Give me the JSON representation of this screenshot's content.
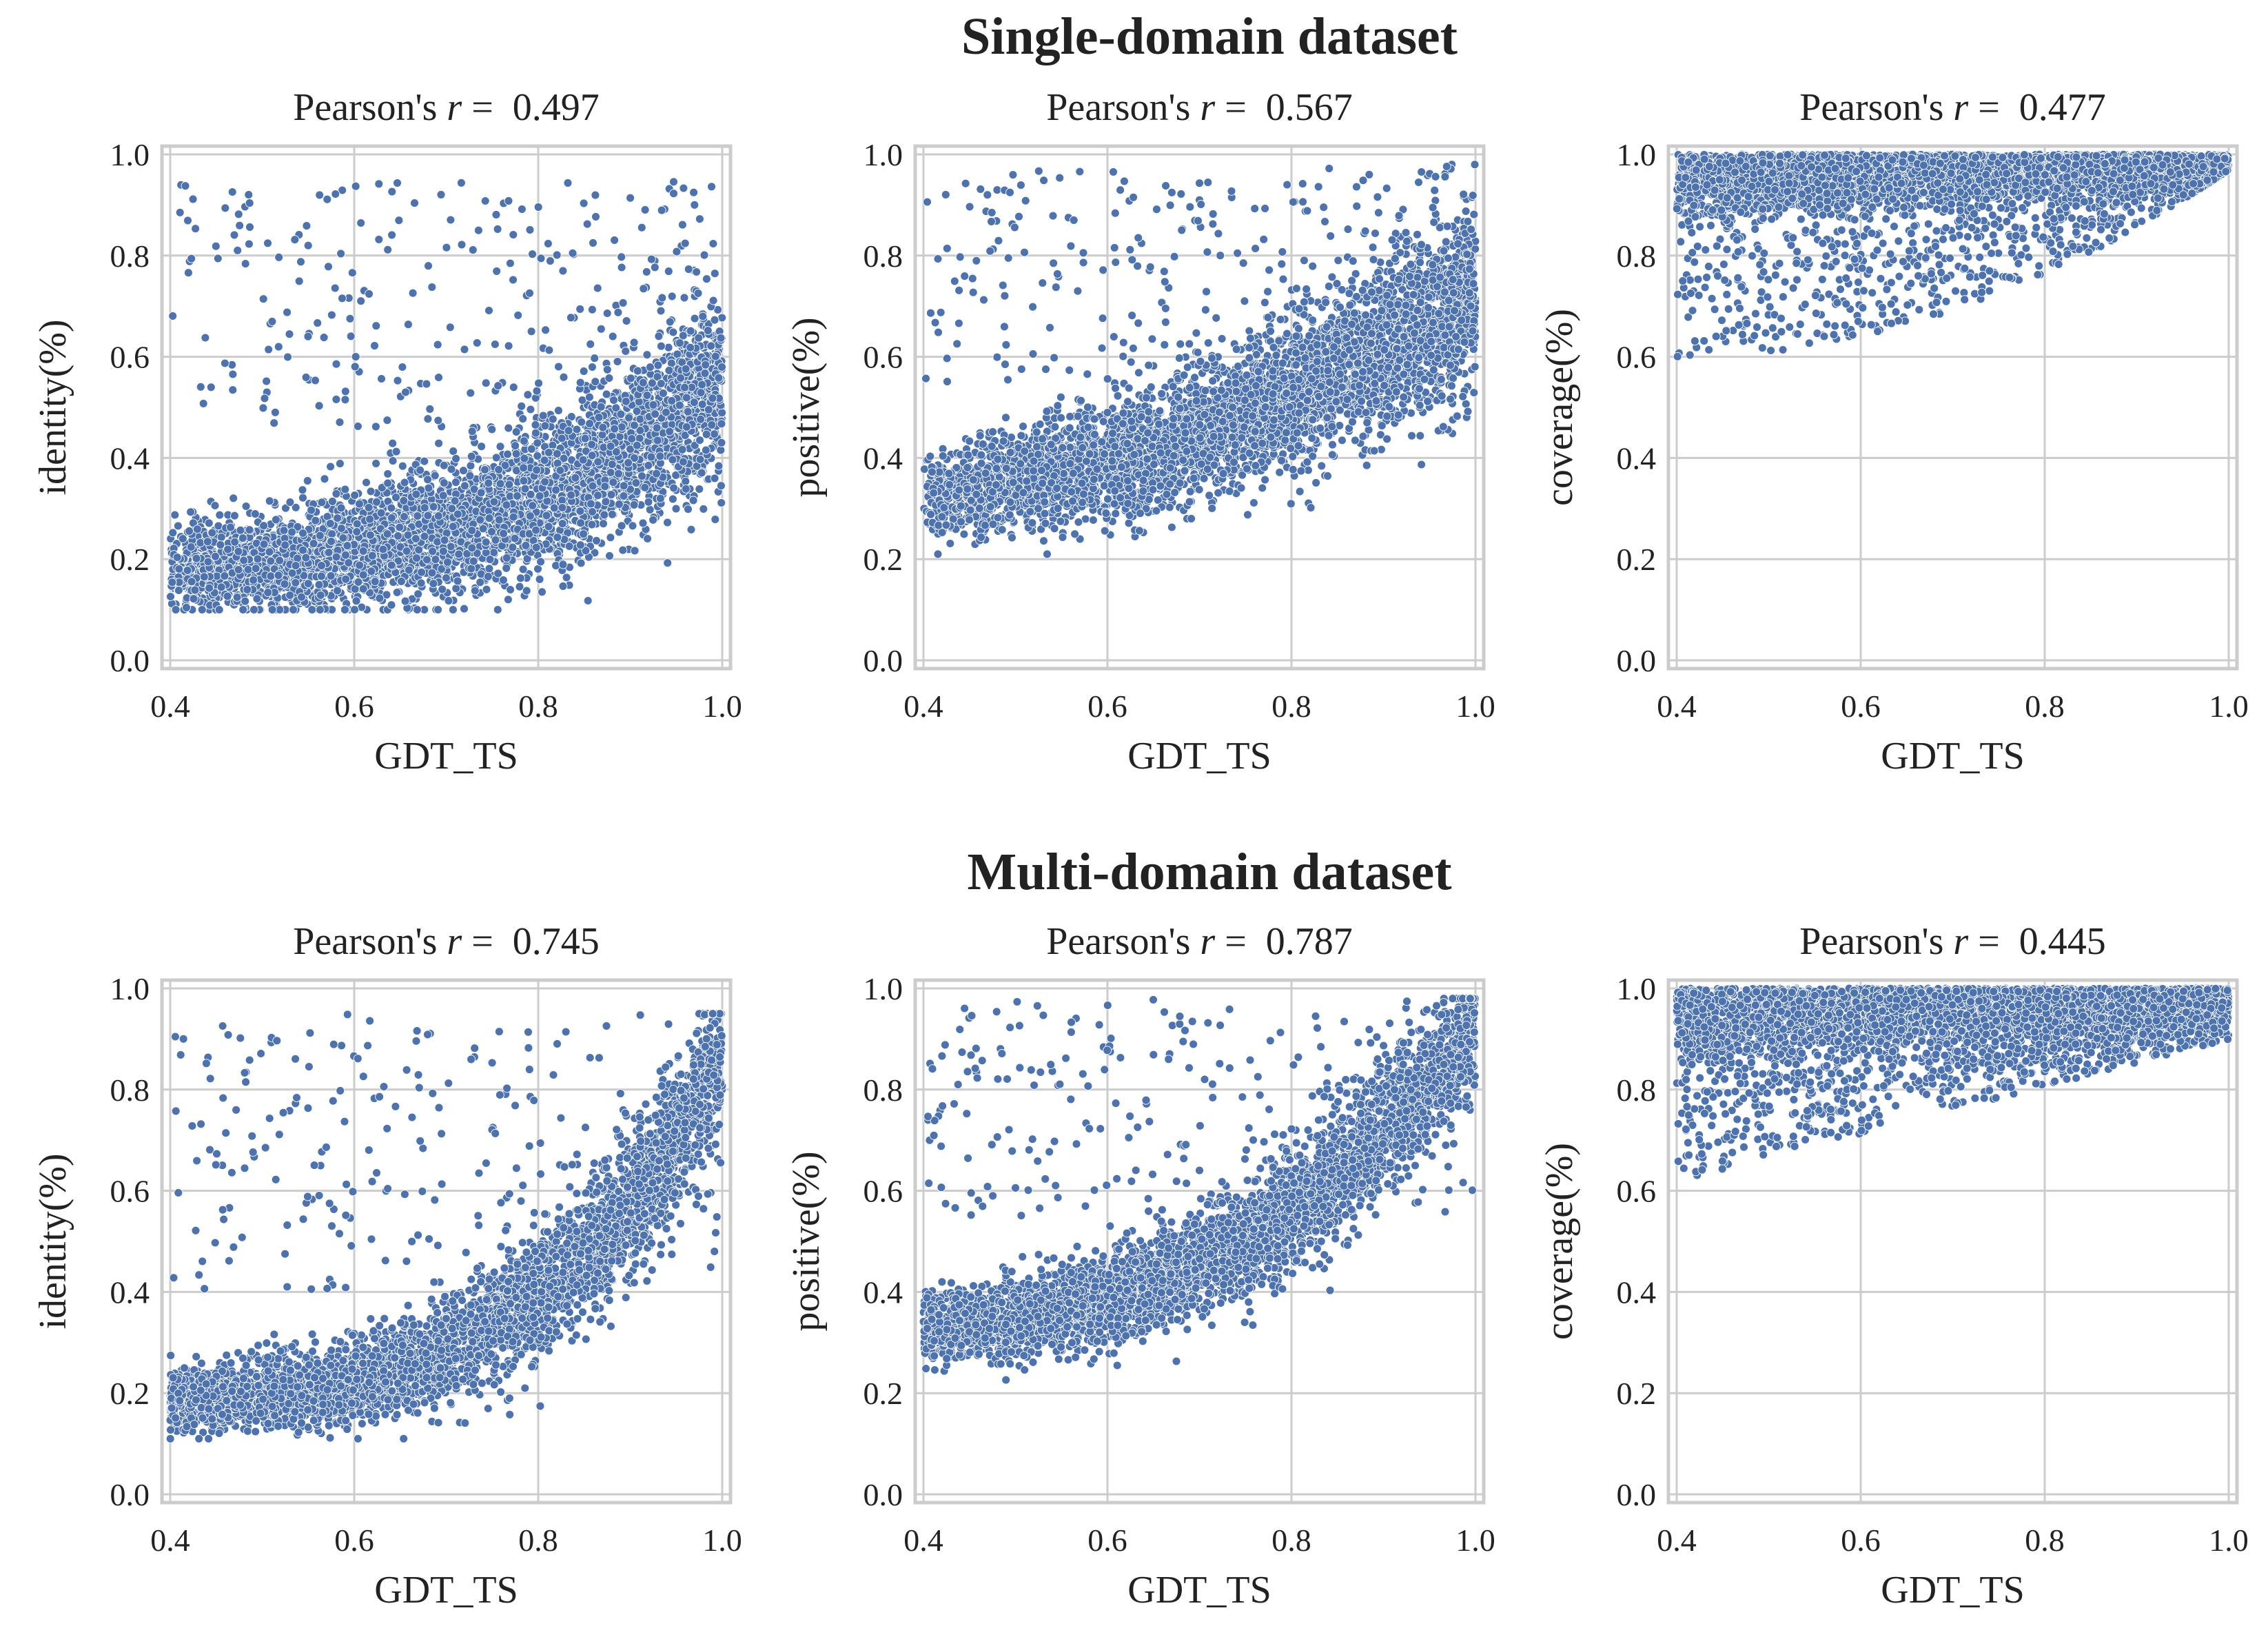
{
  "figure": {
    "row_titles": [
      "Single-domain dataset",
      "Multi-domain dataset"
    ]
  },
  "chart_data": [
    {
      "type": "scatter",
      "row": 0,
      "col": 0,
      "title_prefix": "Pearson's ",
      "title_var": "r",
      "title_eq": " =  ",
      "title_value": "0.497",
      "xlabel": "GDT_TS",
      "ylabel": "identity(%)",
      "xlim": [
        0.4,
        1.0
      ],
      "ylim": [
        0.0,
        1.0
      ],
      "xticks": [
        "0.4",
        "0.6",
        "0.8",
        "1.0"
      ],
      "yticks": [
        "0.0",
        "0.2",
        "0.4",
        "0.6",
        "0.8",
        "1.0"
      ],
      "color": "#4c72b0",
      "n_points": 4500,
      "trend": "y increases with x from about 0.18 at x=0.4 to about 0.55 at x=0.95, with sparse outliers up to 0.95",
      "sample_points": [
        [
          0.4,
          0.18
        ],
        [
          0.45,
          0.2
        ],
        [
          0.5,
          0.21
        ],
        [
          0.55,
          0.24
        ],
        [
          0.6,
          0.26
        ],
        [
          0.65,
          0.28
        ],
        [
          0.7,
          0.31
        ],
        [
          0.75,
          0.34
        ],
        [
          0.8,
          0.38
        ],
        [
          0.85,
          0.44
        ],
        [
          0.9,
          0.52
        ],
        [
          0.95,
          0.58
        ],
        [
          0.55,
          0.9
        ],
        [
          0.7,
          0.92
        ],
        [
          0.92,
          0.95
        ]
      ]
    },
    {
      "type": "scatter",
      "row": 0,
      "col": 1,
      "title_prefix": "Pearson's ",
      "title_var": "r",
      "title_eq": " =  ",
      "title_value": "0.567",
      "xlabel": "GDT_TS",
      "ylabel": "positive(%)",
      "xlim": [
        0.4,
        1.0
      ],
      "ylim": [
        0.0,
        1.0
      ],
      "xticks": [
        "0.4",
        "0.6",
        "0.8",
        "1.0"
      ],
      "yticks": [
        "0.0",
        "0.2",
        "0.4",
        "0.6",
        "0.8",
        "1.0"
      ],
      "color": "#4c72b0",
      "n_points": 4500,
      "trend": "y increases with x from about 0.32 at x=0.4 to about 0.72 at x=0.95",
      "sample_points": [
        [
          0.4,
          0.32
        ],
        [
          0.45,
          0.35
        ],
        [
          0.5,
          0.37
        ],
        [
          0.55,
          0.39
        ],
        [
          0.6,
          0.41
        ],
        [
          0.65,
          0.44
        ],
        [
          0.7,
          0.47
        ],
        [
          0.75,
          0.51
        ],
        [
          0.8,
          0.55
        ],
        [
          0.85,
          0.6
        ],
        [
          0.9,
          0.66
        ],
        [
          0.95,
          0.74
        ],
        [
          0.52,
          0.96
        ],
        [
          0.7,
          0.96
        ],
        [
          0.9,
          0.98
        ]
      ]
    },
    {
      "type": "scatter",
      "row": 0,
      "col": 2,
      "title_prefix": "Pearson's ",
      "title_var": "r",
      "title_eq": " =  ",
      "title_value": "0.477",
      "xlabel": "GDT_TS",
      "ylabel": "coverage(%)",
      "xlim": [
        0.4,
        1.0
      ],
      "ylim": [
        0.0,
        1.0
      ],
      "xticks": [
        "0.4",
        "0.6",
        "0.8",
        "1.0"
      ],
      "yticks": [
        "0.0",
        "0.2",
        "0.4",
        "0.6",
        "0.8",
        "1.0"
      ],
      "color": "#4c72b0",
      "n_points": 4500,
      "trend": "points concentrated near 1.0; lower bound rises from about 0.60 at x=0.4 to about 0.97 at x=1.0",
      "sample_points": [
        [
          0.4,
          0.85
        ],
        [
          0.45,
          0.88
        ],
        [
          0.5,
          0.9
        ],
        [
          0.55,
          0.9
        ],
        [
          0.6,
          0.91
        ],
        [
          0.65,
          0.92
        ],
        [
          0.7,
          0.93
        ],
        [
          0.75,
          0.94
        ],
        [
          0.8,
          0.95
        ],
        [
          0.85,
          0.96
        ],
        [
          0.9,
          0.97
        ],
        [
          0.95,
          0.98
        ],
        [
          0.42,
          0.62
        ],
        [
          0.55,
          0.6
        ],
        [
          0.7,
          0.66
        ]
      ]
    },
    {
      "type": "scatter",
      "row": 1,
      "col": 0,
      "title_prefix": "Pearson's ",
      "title_var": "r",
      "title_eq": " =  ",
      "title_value": "0.745",
      "xlabel": "GDT_TS",
      "ylabel": "identity(%)",
      "xlim": [
        0.4,
        1.0
      ],
      "ylim": [
        0.0,
        1.0
      ],
      "xticks": [
        "0.4",
        "0.6",
        "0.8",
        "1.0"
      ],
      "yticks": [
        "0.0",
        "0.2",
        "0.4",
        "0.6",
        "0.8",
        "1.0"
      ],
      "color": "#4c72b0",
      "n_points": 4500,
      "trend": "convex increase from about 0.19 at x=0.4 to about 0.85 at x=1.0",
      "sample_points": [
        [
          0.4,
          0.19
        ],
        [
          0.45,
          0.2
        ],
        [
          0.5,
          0.21
        ],
        [
          0.55,
          0.22
        ],
        [
          0.6,
          0.23
        ],
        [
          0.65,
          0.25
        ],
        [
          0.7,
          0.28
        ],
        [
          0.75,
          0.32
        ],
        [
          0.8,
          0.37
        ],
        [
          0.85,
          0.44
        ],
        [
          0.9,
          0.54
        ],
        [
          0.95,
          0.68
        ],
        [
          0.42,
          0.94
        ],
        [
          0.65,
          0.92
        ],
        [
          0.98,
          0.94
        ]
      ]
    },
    {
      "type": "scatter",
      "row": 1,
      "col": 1,
      "title_prefix": "Pearson's ",
      "title_var": "r",
      "title_eq": " =  ",
      "title_value": "0.787",
      "xlabel": "GDT_TS",
      "ylabel": "positive(%)",
      "xlim": [
        0.4,
        1.0
      ],
      "ylim": [
        0.0,
        1.0
      ],
      "xticks": [
        "0.4",
        "0.6",
        "0.8",
        "1.0"
      ],
      "yticks": [
        "0.0",
        "0.2",
        "0.4",
        "0.6",
        "0.8",
        "1.0"
      ],
      "color": "#4c72b0",
      "n_points": 4500,
      "trend": "convex increase from about 0.33 at x=0.4 to about 0.92 at x=1.0",
      "sample_points": [
        [
          0.4,
          0.33
        ],
        [
          0.45,
          0.34
        ],
        [
          0.5,
          0.35
        ],
        [
          0.55,
          0.37
        ],
        [
          0.6,
          0.38
        ],
        [
          0.65,
          0.4
        ],
        [
          0.7,
          0.43
        ],
        [
          0.75,
          0.47
        ],
        [
          0.8,
          0.52
        ],
        [
          0.85,
          0.58
        ],
        [
          0.9,
          0.66
        ],
        [
          0.95,
          0.78
        ],
        [
          0.42,
          0.94
        ],
        [
          0.65,
          0.94
        ],
        [
          0.99,
          0.98
        ]
      ]
    },
    {
      "type": "scatter",
      "row": 1,
      "col": 2,
      "title_prefix": "Pearson's ",
      "title_var": "r",
      "title_eq": " =  ",
      "title_value": "0.445",
      "xlabel": "GDT_TS",
      "ylabel": "coverage(%)",
      "xlim": [
        0.4,
        1.0
      ],
      "ylim": [
        0.0,
        1.0
      ],
      "xticks": [
        "0.4",
        "0.6",
        "0.8",
        "1.0"
      ],
      "yticks": [
        "0.0",
        "0.2",
        "0.4",
        "0.6",
        "0.8",
        "1.0"
      ],
      "color": "#4c72b0",
      "n_points": 4500,
      "trend": "points concentrated near 1.0; lower bound rises from about 0.62 at x=0.4 to about 0.90 at x=1.0",
      "sample_points": [
        [
          0.4,
          0.88
        ],
        [
          0.45,
          0.89
        ],
        [
          0.5,
          0.9
        ],
        [
          0.55,
          0.91
        ],
        [
          0.6,
          0.91
        ],
        [
          0.65,
          0.92
        ],
        [
          0.7,
          0.93
        ],
        [
          0.75,
          0.94
        ],
        [
          0.8,
          0.95
        ],
        [
          0.85,
          0.95
        ],
        [
          0.9,
          0.96
        ],
        [
          0.95,
          0.97
        ],
        [
          0.42,
          0.62
        ],
        [
          0.5,
          0.64
        ],
        [
          0.6,
          0.7
        ]
      ]
    }
  ]
}
